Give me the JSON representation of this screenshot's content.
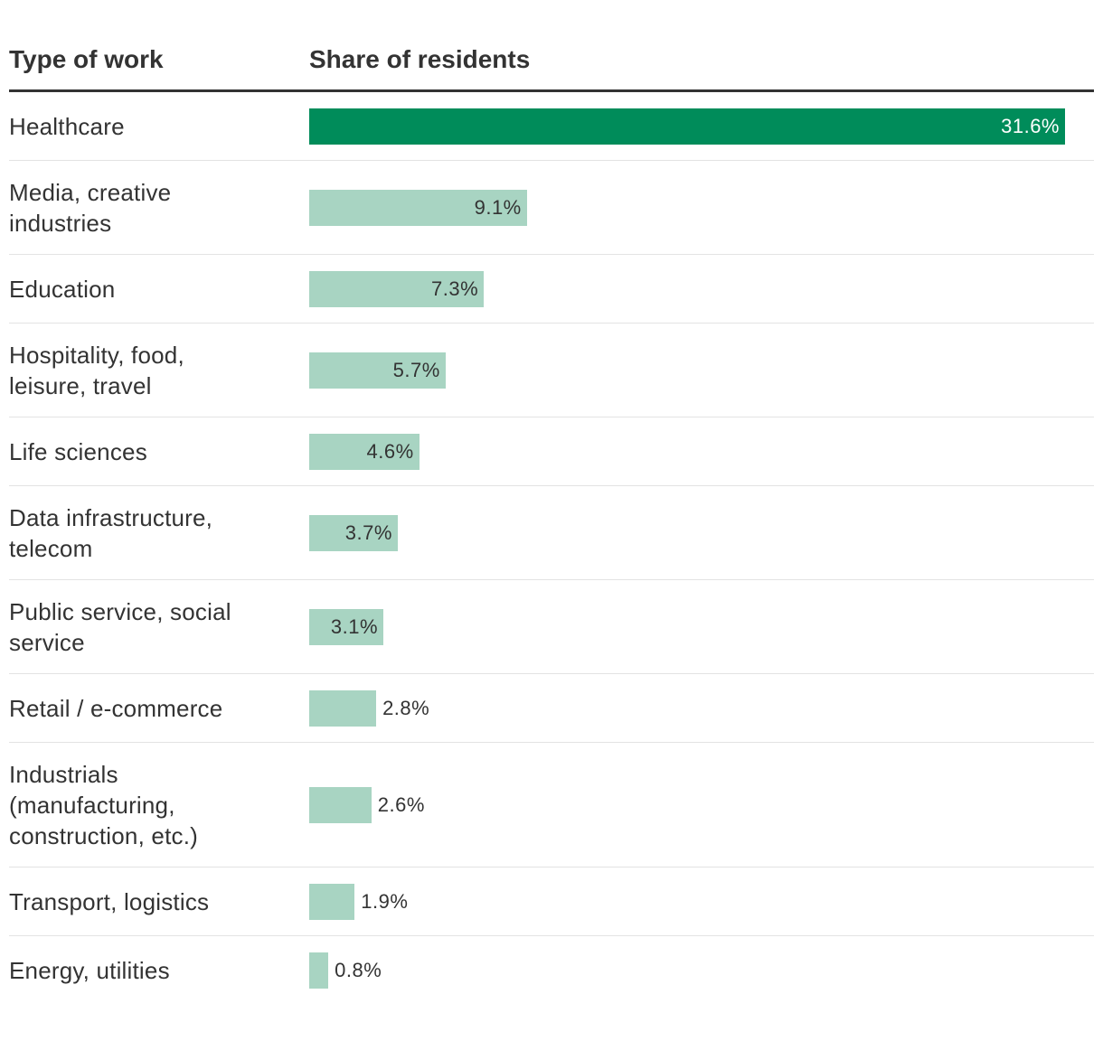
{
  "header": {
    "type_of_work": "Type of work",
    "share_of_residents": "Share of residents"
  },
  "colors": {
    "highlight": "#008c5a",
    "bar": "#a8d4c2",
    "highlight_text": "#ffffff",
    "bar_text": "#333333"
  },
  "chart_data": {
    "type": "bar",
    "orientation": "horizontal",
    "title": "",
    "xlabel": "Share of residents",
    "ylabel": "Type of work",
    "xlim": [
      0,
      32
    ],
    "categories": [
      "Healthcare",
      "Media, creative industries",
      "Education",
      "Hospitality, food, leisure, travel",
      "Life sciences",
      "Data infrastructure, telecom",
      "Public service, social service",
      "Retail / e-commerce",
      "Industrials (manufacturing, construction, etc.)",
      "Transport, logistics",
      "Energy, utilities"
    ],
    "label_lines": [
      [
        "Healthcare"
      ],
      [
        "Media, creative",
        "industries"
      ],
      [
        "Education"
      ],
      [
        "Hospitality, food,",
        "leisure, travel"
      ],
      [
        "Life sciences"
      ],
      [
        "Data infrastructure,",
        "telecom"
      ],
      [
        "Public service, social",
        "service"
      ],
      [
        "Retail / e-commerce"
      ],
      [
        "Industrials",
        "(manufacturing,",
        "construction, etc.)"
      ],
      [
        "Transport, logistics"
      ],
      [
        "Energy, utilities"
      ]
    ],
    "values": [
      31.6,
      9.1,
      7.3,
      5.7,
      4.6,
      3.7,
      3.1,
      2.8,
      2.6,
      1.9,
      0.8
    ],
    "value_labels": [
      "31.6%",
      "9.1%",
      "7.3%",
      "5.7%",
      "4.6%",
      "3.7%",
      "3.1%",
      "2.8%",
      "2.6%",
      "1.9%",
      "0.8%"
    ],
    "highlighted": [
      0
    ]
  }
}
